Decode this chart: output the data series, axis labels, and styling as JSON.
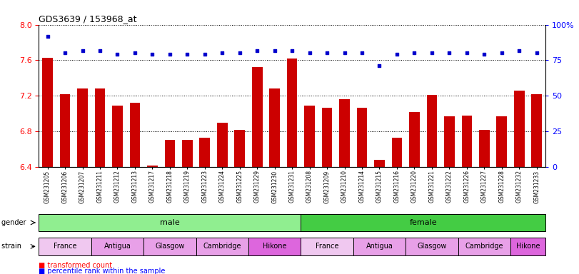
{
  "title": "GDS3639 / 153968_at",
  "samples": [
    "GSM231205",
    "GSM231206",
    "GSM231207",
    "GSM231211",
    "GSM231212",
    "GSM231213",
    "GSM231217",
    "GSM231218",
    "GSM231219",
    "GSM231223",
    "GSM231224",
    "GSM231225",
    "GSM231229",
    "GSM231230",
    "GSM231231",
    "GSM231208",
    "GSM231209",
    "GSM231210",
    "GSM231214",
    "GSM231215",
    "GSM231216",
    "GSM231220",
    "GSM231221",
    "GSM231222",
    "GSM231226",
    "GSM231227",
    "GSM231228",
    "GSM231232",
    "GSM231233"
  ],
  "bar_values": [
    7.63,
    7.22,
    7.28,
    7.28,
    7.09,
    7.12,
    6.42,
    6.71,
    6.71,
    6.73,
    6.9,
    6.82,
    7.52,
    7.28,
    7.62,
    7.09,
    7.07,
    7.16,
    7.07,
    6.48,
    6.73,
    7.02,
    7.21,
    6.97,
    6.98,
    6.82,
    6.97,
    7.26,
    7.22
  ],
  "percentile_values": [
    92,
    80,
    82,
    82,
    79,
    80,
    79,
    79,
    79,
    79,
    80,
    80,
    82,
    82,
    82,
    80,
    80,
    80,
    80,
    71,
    79,
    80,
    80,
    80,
    80,
    79,
    80,
    82,
    80
  ],
  "ylim_left": [
    6.4,
    8.0
  ],
  "ylim_right": [
    0,
    100
  ],
  "yticks_left": [
    6.4,
    6.8,
    7.2,
    7.6,
    8.0
  ],
  "yticks_right": [
    0,
    25,
    50,
    75,
    100
  ],
  "ytick_labels_right": [
    "0",
    "25",
    "50",
    "75",
    "100%"
  ],
  "bar_color": "#cc0000",
  "dot_color": "#0000cc",
  "gender_row": [
    {
      "label": "male",
      "start": 0,
      "end": 14,
      "color": "#90ee90"
    },
    {
      "label": "female",
      "start": 15,
      "end": 28,
      "color": "#44cc44"
    }
  ],
  "strain_row": [
    {
      "label": "France",
      "start": 0,
      "end": 2,
      "color": "#f0c8f0"
    },
    {
      "label": "Antigua",
      "start": 3,
      "end": 5,
      "color": "#e8a0e8"
    },
    {
      "label": "Glasgow",
      "start": 6,
      "end": 8,
      "color": "#e8a0e8"
    },
    {
      "label": "Cambridge",
      "start": 9,
      "end": 11,
      "color": "#e8a0e8"
    },
    {
      "label": "Hikone",
      "start": 12,
      "end": 14,
      "color": "#dd66dd"
    },
    {
      "label": "France",
      "start": 15,
      "end": 17,
      "color": "#f0c8f0"
    },
    {
      "label": "Antigua",
      "start": 18,
      "end": 20,
      "color": "#e8a0e8"
    },
    {
      "label": "Glasgow",
      "start": 21,
      "end": 23,
      "color": "#e8a0e8"
    },
    {
      "label": "Cambridge",
      "start": 24,
      "end": 26,
      "color": "#e8a0e8"
    },
    {
      "label": "Hikone",
      "start": 27,
      "end": 28,
      "color": "#dd66dd"
    }
  ]
}
